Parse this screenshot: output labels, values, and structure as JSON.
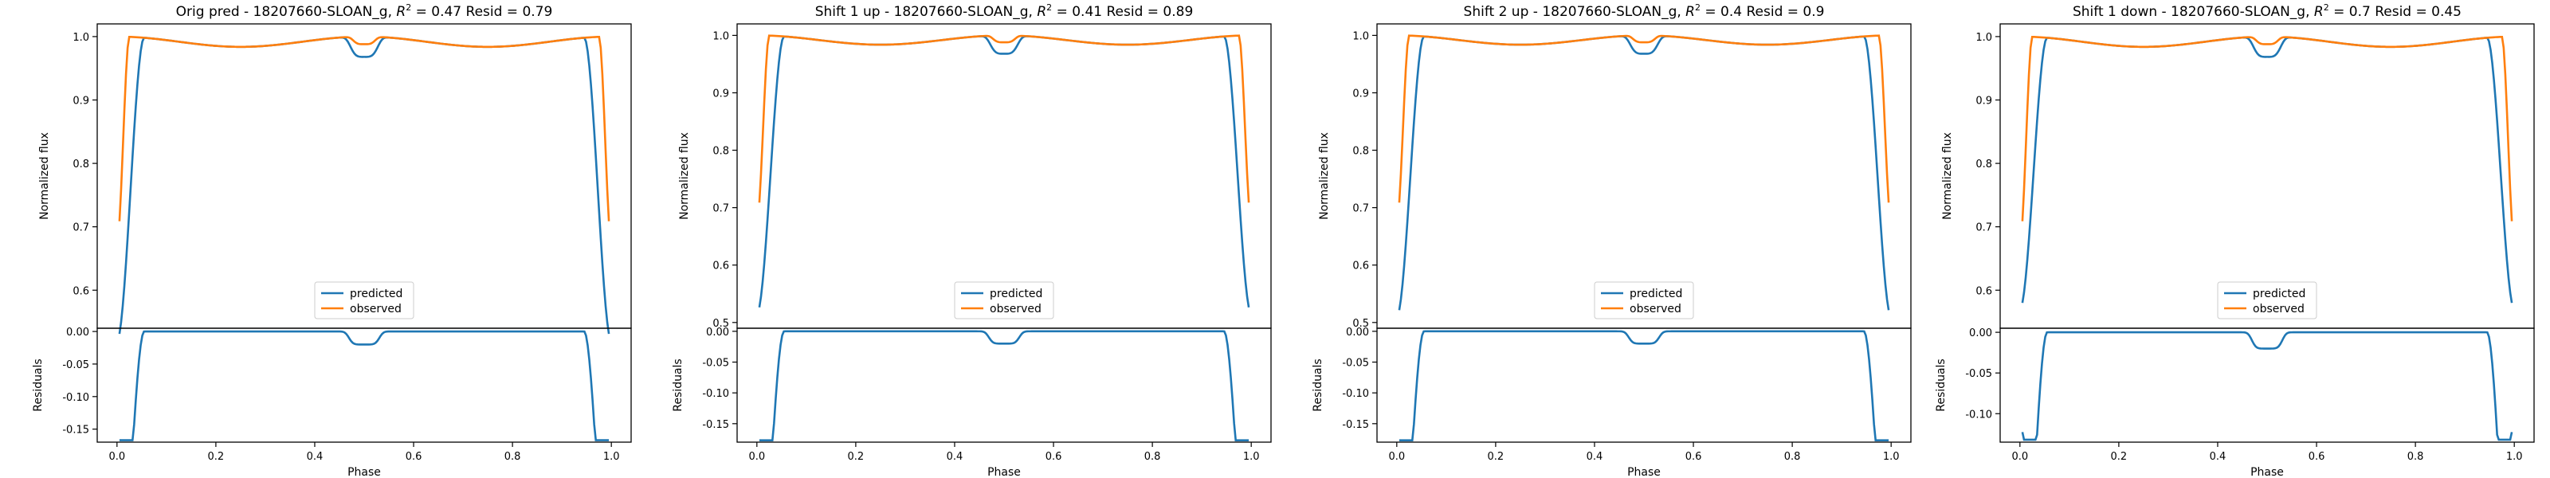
{
  "chart_data": [
    {
      "type": "line",
      "title_prefix": "Orig pred - 18207660-SLOAN_g, ",
      "r2_symbol": "R",
      "r2_exp": "2",
      "title_suffix": " = 0.47 Resid = 0.79",
      "ylabel_main": "Normalized flux",
      "ylabel_resid": "Residuals",
      "xlabel": "Phase",
      "xlim": [
        -0.04,
        1.04
      ],
      "ylim_main": [
        0.54,
        1.02
      ],
      "yticks_main": [
        "0.6",
        "0.7",
        "0.8",
        "0.9",
        "1.0"
      ],
      "yticks_main_values": [
        0.6,
        0.7,
        0.8,
        0.9,
        1.0
      ],
      "ylim_resid": [
        -0.17,
        0.005
      ],
      "yticks_resid": [
        "0.00",
        "-0.05",
        "-0.10",
        "-0.15"
      ],
      "yticks_resid_values": [
        0.0,
        -0.05,
        -0.1,
        -0.15
      ],
      "xticks": [
        "0.0",
        "0.2",
        "0.4",
        "0.6",
        "0.8",
        "1.0"
      ],
      "xticks_values": [
        0.0,
        0.2,
        0.4,
        0.6,
        0.8,
        1.0
      ],
      "legend": "lower-center",
      "series": [
        {
          "name": "predicted",
          "color": "#1f77b4",
          "min": 0.52,
          "ingress_w": 0.055,
          "dip_depth": 0.032,
          "dip_w": 0.05
        },
        {
          "name": "observed",
          "color": "#ff7f0e",
          "min": 0.675,
          "ingress_w": 0.025,
          "dip_depth": 0.012,
          "dip_w": 0.04
        }
      ],
      "resid_edge": -0.15
    },
    {
      "type": "line",
      "title_prefix": "Shift 1 up - 18207660-SLOAN_g, ",
      "r2_symbol": "R",
      "r2_exp": "2",
      "title_suffix": " = 0.41 Resid = 0.89",
      "ylabel_main": "Normalized flux",
      "ylabel_resid": "Residuals",
      "xlabel": "Phase",
      "xlim": [
        -0.04,
        1.04
      ],
      "ylim_main": [
        0.49,
        1.02
      ],
      "yticks_main": [
        "0.5",
        "0.6",
        "0.7",
        "0.8",
        "0.9",
        "1.0"
      ],
      "yticks_main_values": [
        0.5,
        0.6,
        0.7,
        0.8,
        0.9,
        1.0
      ],
      "ylim_resid": [
        -0.18,
        0.005
      ],
      "yticks_resid": [
        "0.00",
        "-0.05",
        "-0.10",
        "-0.15"
      ],
      "yticks_resid_values": [
        0.0,
        -0.05,
        -0.1,
        -0.15
      ],
      "xticks": [
        "0.0",
        "0.2",
        "0.4",
        "0.6",
        "0.8",
        "1.0"
      ],
      "xticks_values": [
        0.0,
        0.2,
        0.4,
        0.6,
        0.8,
        1.0
      ],
      "legend": "lower-center",
      "series": [
        {
          "name": "predicted",
          "color": "#1f77b4",
          "min": 0.515,
          "ingress_w": 0.055,
          "dip_depth": 0.032,
          "dip_w": 0.05
        },
        {
          "name": "observed",
          "color": "#ff7f0e",
          "min": 0.675,
          "ingress_w": 0.025,
          "dip_depth": 0.012,
          "dip_w": 0.04
        }
      ],
      "resid_edge": -0.16
    },
    {
      "type": "line",
      "title_prefix": "Shift 2 up - 18207660-SLOAN_g, ",
      "r2_symbol": "R",
      "r2_exp": "2",
      "title_suffix": " = 0.4 Resid = 0.9",
      "ylabel_main": "Normalized flux",
      "ylabel_resid": "Residuals",
      "xlabel": "Phase",
      "xlim": [
        -0.04,
        1.04
      ],
      "ylim_main": [
        0.49,
        1.02
      ],
      "yticks_main": [
        "0.5",
        "0.6",
        "0.7",
        "0.8",
        "0.9",
        "1.0"
      ],
      "yticks_main_values": [
        0.5,
        0.6,
        0.7,
        0.8,
        0.9,
        1.0
      ],
      "ylim_resid": [
        -0.18,
        0.005
      ],
      "yticks_resid": [
        "0.00",
        "-0.05",
        "-0.10",
        "-0.15"
      ],
      "yticks_resid_values": [
        0.0,
        -0.05,
        -0.1,
        -0.15
      ],
      "xticks": [
        "0.0",
        "0.2",
        "0.4",
        "0.6",
        "0.8",
        "1.0"
      ],
      "xticks_values": [
        0.0,
        0.2,
        0.4,
        0.6,
        0.8,
        1.0
      ],
      "legend": "lower-center",
      "series": [
        {
          "name": "predicted",
          "color": "#1f77b4",
          "min": 0.51,
          "ingress_w": 0.055,
          "dip_depth": 0.032,
          "dip_w": 0.05
        },
        {
          "name": "observed",
          "color": "#ff7f0e",
          "min": 0.675,
          "ingress_w": 0.025,
          "dip_depth": 0.012,
          "dip_w": 0.04
        }
      ],
      "resid_edge": -0.165
    },
    {
      "type": "line",
      "title_prefix": "Shift 1 down - 18207660-SLOAN_g, ",
      "r2_symbol": "R",
      "r2_exp": "2",
      "title_suffix": " = 0.7 Resid = 0.45",
      "ylabel_main": "Normalized flux",
      "ylabel_resid": "Residuals",
      "xlabel": "Phase",
      "xlim": [
        -0.04,
        1.04
      ],
      "ylim_main": [
        0.54,
        1.02
      ],
      "yticks_main": [
        "0.6",
        "0.7",
        "0.8",
        "0.9",
        "1.0"
      ],
      "yticks_main_values": [
        0.6,
        0.7,
        0.8,
        0.9,
        1.0
      ],
      "ylim_resid": [
        -0.135,
        0.005
      ],
      "yticks_resid": [
        "0.00",
        "-0.05",
        "-0.10"
      ],
      "yticks_resid_values": [
        0.0,
        -0.05,
        -0.1
      ],
      "xticks": [
        "0.0",
        "0.2",
        "0.4",
        "0.6",
        "0.8",
        "1.0"
      ],
      "xticks_values": [
        0.0,
        0.2,
        0.4,
        0.6,
        0.8,
        1.0
      ],
      "legend": "lower-center",
      "series": [
        {
          "name": "predicted",
          "color": "#1f77b4",
          "min": 0.57,
          "ingress_w": 0.055,
          "dip_depth": 0.032,
          "dip_w": 0.05
        },
        {
          "name": "observed",
          "color": "#ff7f0e",
          "min": 0.675,
          "ingress_w": 0.025,
          "dip_depth": 0.012,
          "dip_w": 0.04
        }
      ],
      "resid_edge": -0.1
    }
  ]
}
